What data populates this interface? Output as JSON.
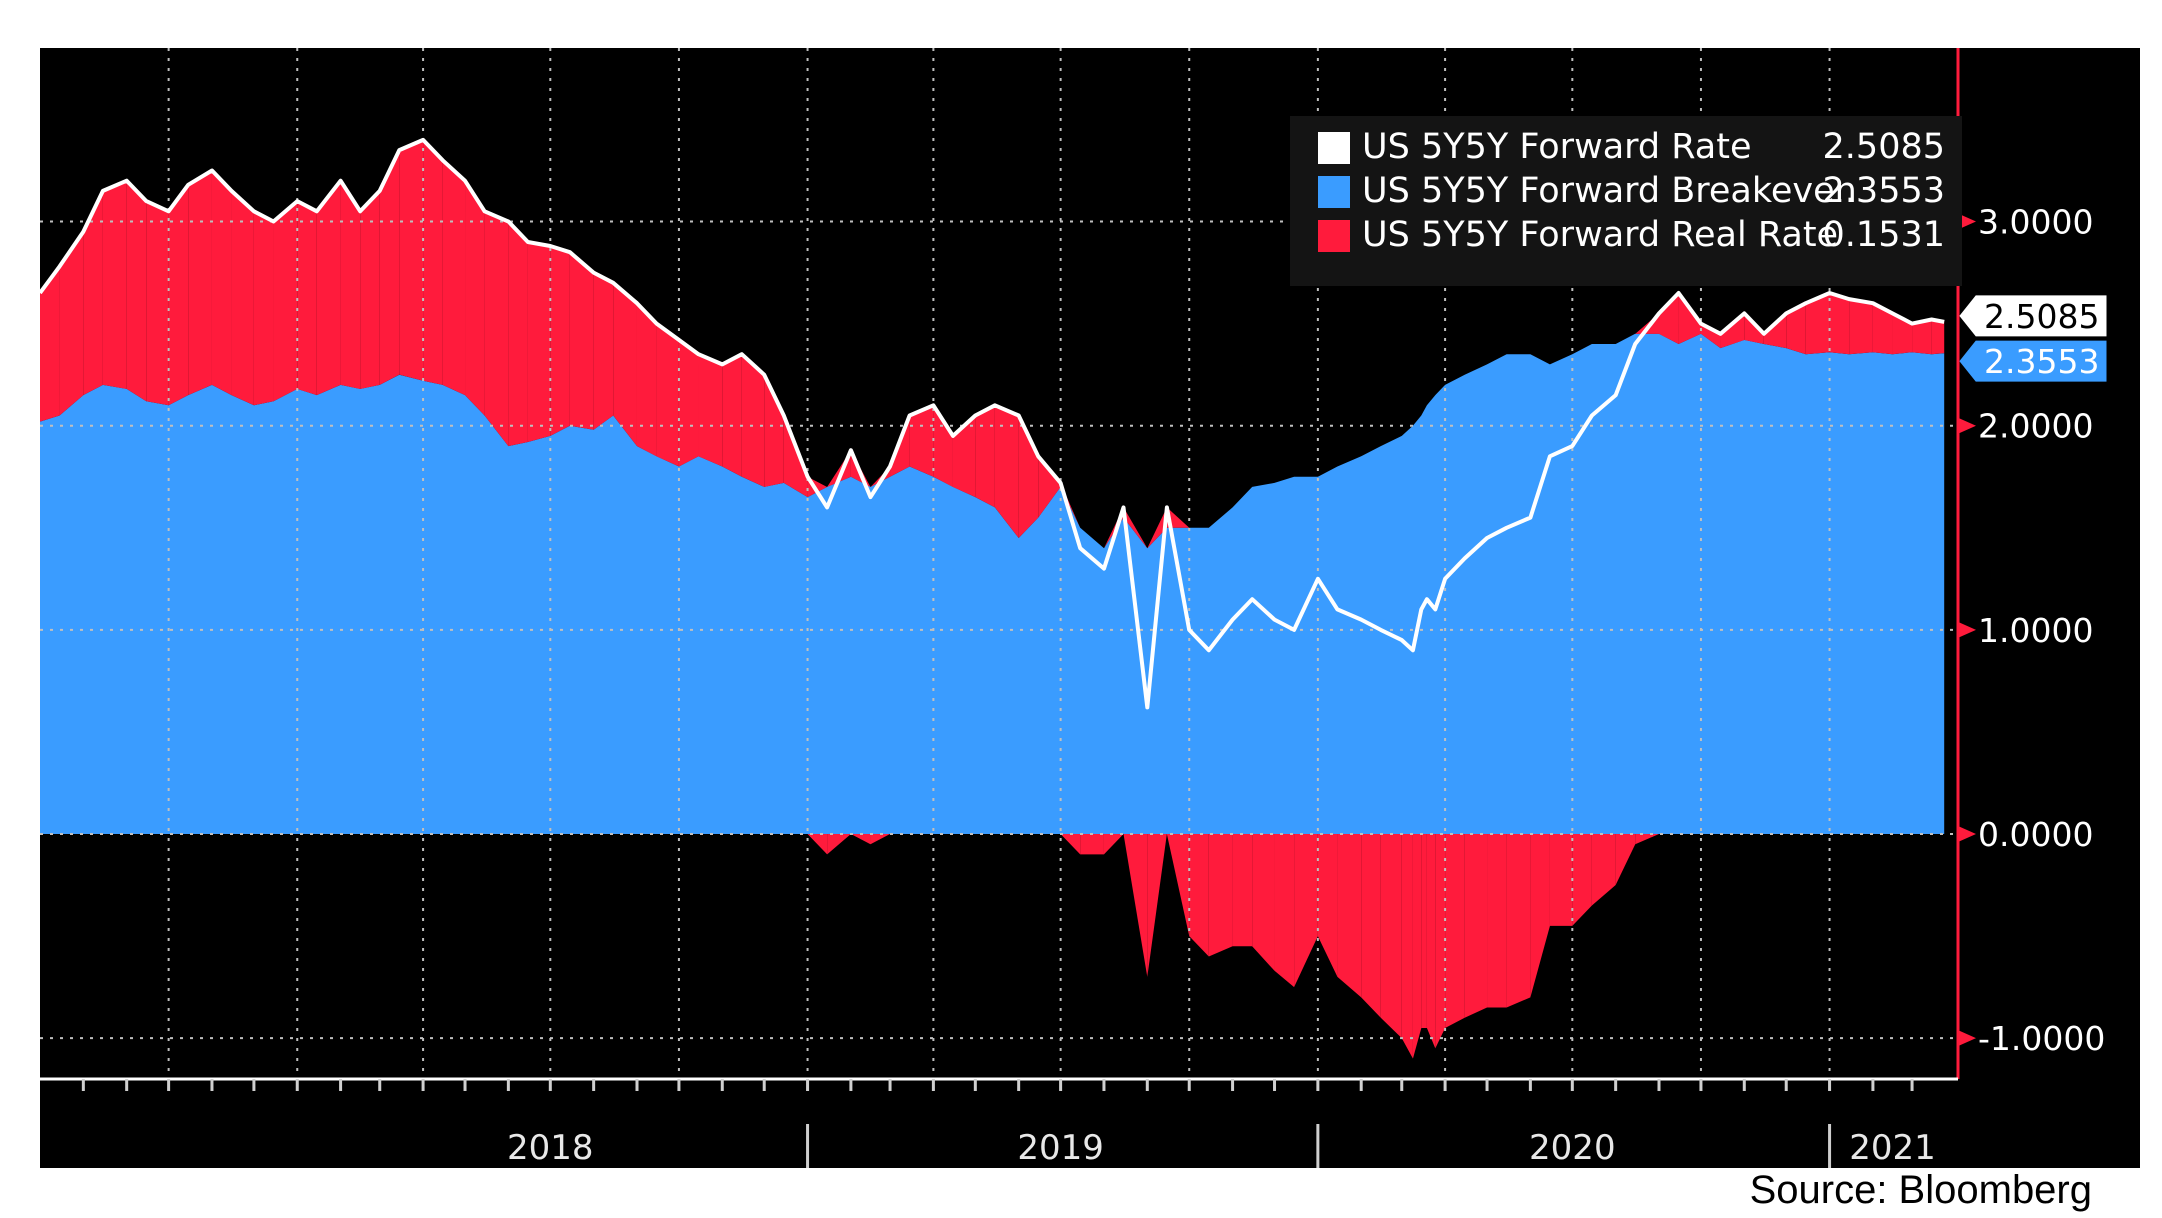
{
  "source": "Source: Bloomberg",
  "colors": {
    "background": "#000000",
    "forward_rate": "#ffffff",
    "breakeven": "#3a9cff",
    "real_rate": "#ff1b3c",
    "axis_accent": "#ff1b3c"
  },
  "chart_data": {
    "type": "area",
    "x_axis_labels": [
      "2018",
      "2019",
      "2020",
      "2021"
    ],
    "xlim": [
      "2017-07-01",
      "2021-03-31"
    ],
    "ylim": [
      -1.2,
      3.85
    ],
    "y_ticks": [
      3.0,
      2.0,
      1.0,
      0.0,
      -1.0
    ],
    "y_tick_labels": [
      "3.0000",
      "2.0000",
      "1.0000",
      "0.0000",
      "-1.0000"
    ],
    "grid": true,
    "legend_position": "top-right",
    "dates": [
      "2017-07-01",
      "2017-07-15",
      "2017-08-01",
      "2017-08-15",
      "2017-09-01",
      "2017-09-15",
      "2017-10-01",
      "2017-10-15",
      "2017-11-01",
      "2017-11-15",
      "2017-12-01",
      "2017-12-15",
      "2018-01-01",
      "2018-01-15",
      "2018-02-01",
      "2018-02-15",
      "2018-03-01",
      "2018-03-15",
      "2018-04-01",
      "2018-04-15",
      "2018-05-01",
      "2018-05-15",
      "2018-06-01",
      "2018-06-15",
      "2018-07-01",
      "2018-07-15",
      "2018-08-01",
      "2018-08-15",
      "2018-09-01",
      "2018-09-15",
      "2018-10-01",
      "2018-10-15",
      "2018-11-01",
      "2018-11-15",
      "2018-12-01",
      "2018-12-15",
      "2019-01-01",
      "2019-01-15",
      "2019-02-01",
      "2019-02-15",
      "2019-03-01",
      "2019-03-15",
      "2019-04-01",
      "2019-04-15",
      "2019-05-01",
      "2019-05-15",
      "2019-06-01",
      "2019-06-15",
      "2019-07-01",
      "2019-07-15",
      "2019-08-01",
      "2019-08-15",
      "2019-09-01",
      "2019-09-15",
      "2019-10-01",
      "2019-10-15",
      "2019-11-01",
      "2019-11-15",
      "2019-12-01",
      "2019-12-15",
      "2020-01-01",
      "2020-01-15",
      "2020-02-01",
      "2020-02-15",
      "2020-03-01",
      "2020-03-09",
      "2020-03-15",
      "2020-03-19",
      "2020-03-25",
      "2020-04-01",
      "2020-04-15",
      "2020-05-01",
      "2020-05-15",
      "2020-06-01",
      "2020-06-15",
      "2020-07-01",
      "2020-07-15",
      "2020-08-01",
      "2020-08-15",
      "2020-09-01",
      "2020-09-15",
      "2020-10-01",
      "2020-10-15",
      "2020-11-01",
      "2020-11-15",
      "2020-12-01",
      "2020-12-15",
      "2021-01-01",
      "2021-01-15",
      "2021-02-01",
      "2021-02-15",
      "2021-03-01",
      "2021-03-15",
      "2021-03-24"
    ],
    "series": [
      {
        "name": "US 5Y5Y Forward Rate",
        "latest": "2.5085",
        "values": [
          2.65,
          2.78,
          2.95,
          3.15,
          3.2,
          3.1,
          3.05,
          3.18,
          3.25,
          3.15,
          3.05,
          3.0,
          3.1,
          3.05,
          3.2,
          3.05,
          3.15,
          3.35,
          3.4,
          3.3,
          3.2,
          3.05,
          3.0,
          2.9,
          2.88,
          2.85,
          2.75,
          2.7,
          2.6,
          2.5,
          2.42,
          2.35,
          2.3,
          2.35,
          2.25,
          2.05,
          1.75,
          1.6,
          1.88,
          1.65,
          1.8,
          2.05,
          2.1,
          1.95,
          2.05,
          2.1,
          2.05,
          1.85,
          1.72,
          1.4,
          1.3,
          1.6,
          0.62,
          1.6,
          1.0,
          0.9,
          1.05,
          1.15,
          1.05,
          1.0,
          1.25,
          1.1,
          1.05,
          1.0,
          0.95,
          0.9,
          1.1,
          1.15,
          1.1,
          1.25,
          1.35,
          1.45,
          1.5,
          1.55,
          1.85,
          1.9,
          2.05,
          2.15,
          2.4,
          2.55,
          2.65,
          2.5,
          2.45,
          2.55,
          2.45,
          2.55,
          2.6,
          2.65,
          2.62,
          2.6,
          2.55,
          2.5,
          2.52,
          2.5085
        ]
      },
      {
        "name": "US 5Y5Y Forward Breakeven",
        "latest": "2.3553",
        "values": [
          2.02,
          2.05,
          2.15,
          2.2,
          2.18,
          2.12,
          2.1,
          2.15,
          2.2,
          2.15,
          2.1,
          2.12,
          2.18,
          2.15,
          2.2,
          2.18,
          2.2,
          2.25,
          2.22,
          2.2,
          2.15,
          2.05,
          1.9,
          1.92,
          1.95,
          2.0,
          1.98,
          2.05,
          1.9,
          1.85,
          1.8,
          1.85,
          1.8,
          1.75,
          1.7,
          1.72,
          1.65,
          1.7,
          1.75,
          1.7,
          1.75,
          1.8,
          1.75,
          1.7,
          1.65,
          1.6,
          1.45,
          1.55,
          1.7,
          1.5,
          1.4,
          1.55,
          1.4,
          1.5,
          1.5,
          1.5,
          1.6,
          1.7,
          1.72,
          1.75,
          1.75,
          1.8,
          1.85,
          1.9,
          1.95,
          2.0,
          2.05,
          2.1,
          2.15,
          2.2,
          2.25,
          2.3,
          2.35,
          2.35,
          2.3,
          2.35,
          2.4,
          2.4,
          2.45,
          2.45,
          2.4,
          2.45,
          2.38,
          2.42,
          2.4,
          2.38,
          2.35,
          2.36,
          2.35,
          2.36,
          2.35,
          2.36,
          2.35,
          2.3553
        ]
      },
      {
        "name": "US 5Y5Y Forward Real Rate",
        "latest": "0.1531",
        "values": [
          0.63,
          0.73,
          0.8,
          0.95,
          1.02,
          0.98,
          0.95,
          1.03,
          1.05,
          1.0,
          0.95,
          0.88,
          0.92,
          0.9,
          1.0,
          0.87,
          0.95,
          1.1,
          1.18,
          1.1,
          1.05,
          1.0,
          1.1,
          0.98,
          0.93,
          0.85,
          0.77,
          0.65,
          0.7,
          0.65,
          0.62,
          0.5,
          0.5,
          0.6,
          0.55,
          0.33,
          0.1,
          -0.1,
          0.13,
          -0.05,
          0.05,
          0.25,
          0.35,
          0.25,
          0.4,
          0.5,
          0.6,
          0.3,
          0.02,
          -0.1,
          -0.1,
          0.05,
          -0.7,
          0.1,
          -0.5,
          -0.6,
          -0.55,
          -0.55,
          -0.67,
          -0.75,
          -0.5,
          -0.7,
          -0.8,
          -0.9,
          -1.0,
          -1.1,
          -0.95,
          -0.95,
          -1.05,
          -0.95,
          -0.9,
          -0.85,
          -0.85,
          -0.8,
          -0.45,
          -0.45,
          -0.35,
          -0.25,
          -0.05,
          0.1,
          0.25,
          0.05,
          0.07,
          0.13,
          0.05,
          0.17,
          0.25,
          0.29,
          0.27,
          0.24,
          0.2,
          0.14,
          0.17,
          0.1531
        ]
      }
    ]
  }
}
